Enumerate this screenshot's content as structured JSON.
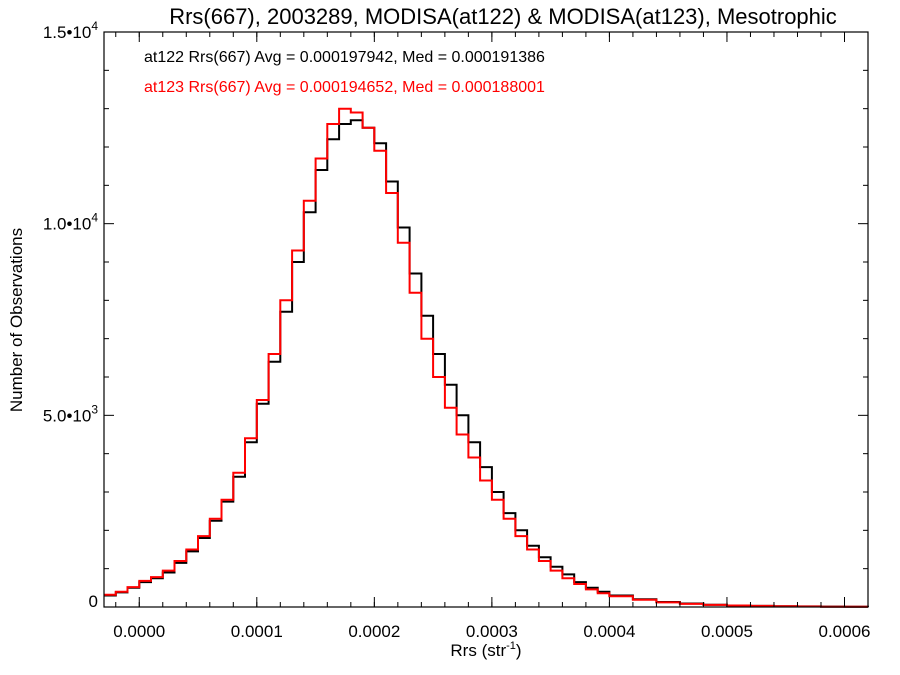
{
  "chart_data": {
    "type": "line",
    "title": "Rrs(667), 2003289, MODISA(at122) & MODISA(at123), Mesotrophic",
    "xlabel_base": "Rrs (str",
    "xlabel_sup": "-1",
    "xlabel_close": ")",
    "ylabel": "Number of Observations",
    "xlim": [
      -3e-05,
      0.00062
    ],
    "ylim": [
      0,
      15000
    ],
    "x_ticks": [
      {
        "value": 0.0,
        "label": "0.0000"
      },
      {
        "value": 0.0001,
        "label": "0.0001"
      },
      {
        "value": 0.0002,
        "label": "0.0002"
      },
      {
        "value": 0.0003,
        "label": "0.0003"
      },
      {
        "value": 0.0004,
        "label": "0.0004"
      },
      {
        "value": 0.0005,
        "label": "0.0005"
      },
      {
        "value": 0.0006,
        "label": "0.0006"
      }
    ],
    "y_ticks": [
      {
        "value": 0,
        "base": "0",
        "exp": ""
      },
      {
        "value": 5000,
        "base": "5.0•10",
        "exp": "3"
      },
      {
        "value": 10000,
        "base": "1.0•10",
        "exp": "4"
      },
      {
        "value": 15000,
        "base": "1.5•10",
        "exp": "4"
      }
    ],
    "series": [
      {
        "name": "at122",
        "color": "#000000",
        "annotation": "at122 Rrs(667) Avg = 0.000197942, Med = 0.000191386",
        "x": [
          -3e-05,
          -2e-05,
          -1e-05,
          0.0,
          1e-05,
          2e-05,
          3e-05,
          4e-05,
          5e-05,
          6e-05,
          7e-05,
          8e-05,
          9e-05,
          0.0001,
          0.00011,
          0.00012,
          0.00013,
          0.00014,
          0.00015,
          0.00016,
          0.00017,
          0.00018,
          0.00019,
          0.0002,
          0.00021,
          0.00022,
          0.00023,
          0.00024,
          0.00025,
          0.00026,
          0.00027,
          0.00028,
          0.00029,
          0.0003,
          0.00031,
          0.00032,
          0.00033,
          0.00034,
          0.00035,
          0.00036,
          0.00037,
          0.00038,
          0.00039,
          0.0004,
          0.00042,
          0.00044,
          0.00046,
          0.00048,
          0.0005,
          0.00052,
          0.00054,
          0.00056,
          0.00058,
          0.0006,
          0.00062
        ],
        "y": [
          300,
          380,
          500,
          650,
          750,
          900,
          1150,
          1450,
          1800,
          2250,
          2750,
          3400,
          4300,
          5300,
          6400,
          7700,
          9000,
          10300,
          11400,
          12200,
          12600,
          12700,
          12500,
          12100,
          11100,
          9900,
          8700,
          7600,
          6600,
          5800,
          5000,
          4300,
          3650,
          3000,
          2450,
          2000,
          1600,
          1300,
          1050,
          850,
          650,
          500,
          400,
          300,
          200,
          130,
          90,
          60,
          40,
          30,
          20,
          15,
          10,
          8,
          5
        ]
      },
      {
        "name": "at123",
        "color": "#ff0000",
        "annotation": "at123 Rrs(667) Avg = 0.000194652, Med = 0.000188001",
        "x": [
          -3e-05,
          -2e-05,
          -1e-05,
          0.0,
          1e-05,
          2e-05,
          3e-05,
          4e-05,
          5e-05,
          6e-05,
          7e-05,
          8e-05,
          9e-05,
          0.0001,
          0.00011,
          0.00012,
          0.00013,
          0.00014,
          0.00015,
          0.00016,
          0.00017,
          0.00018,
          0.00019,
          0.0002,
          0.00021,
          0.00022,
          0.00023,
          0.00024,
          0.00025,
          0.00026,
          0.00027,
          0.00028,
          0.00029,
          0.0003,
          0.00031,
          0.00032,
          0.00033,
          0.00034,
          0.00035,
          0.00036,
          0.00037,
          0.00038,
          0.00039,
          0.0004,
          0.00042,
          0.00044,
          0.00046,
          0.00048,
          0.0005,
          0.00052,
          0.00054,
          0.00056,
          0.00058,
          0.0006,
          0.00062
        ],
        "y": [
          320,
          400,
          520,
          680,
          780,
          950,
          1200,
          1500,
          1850,
          2300,
          2800,
          3500,
          4400,
          5400,
          6600,
          8000,
          9300,
          10600,
          11700,
          12600,
          13000,
          12900,
          12500,
          11900,
          10800,
          9500,
          8200,
          7000,
          6000,
          5200,
          4500,
          3900,
          3300,
          2800,
          2300,
          1850,
          1500,
          1200,
          950,
          750,
          600,
          460,
          360,
          280,
          190,
          120,
          80,
          55,
          38,
          28,
          18,
          13,
          9,
          6,
          4
        ]
      }
    ]
  }
}
